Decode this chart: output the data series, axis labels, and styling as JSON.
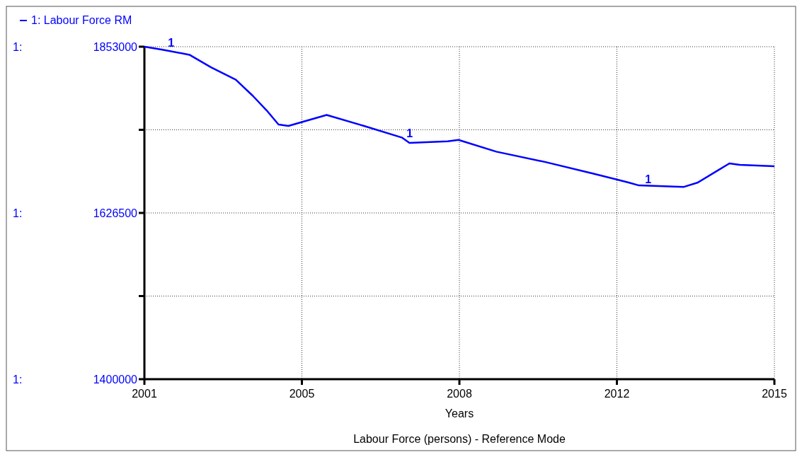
{
  "chart_data": {
    "type": "line",
    "title": "Labour Force (persons) - Reference Mode",
    "xlabel": "Years",
    "x": [
      2001,
      2001.4,
      2002.0,
      2002.48,
      2003.03,
      2003.41,
      2003.72,
      2003.98,
      2004.2,
      2005.05,
      2005.88,
      2006.73,
      2006.89,
      2007.74,
      2007.98,
      2008.82,
      2009.9,
      2010.98,
      2011.76,
      2011.99,
      2012.99,
      2013.3,
      2014.0,
      2014.23,
      2015
    ],
    "series": [
      {
        "name": "1: Labour Force RM",
        "color": "#0000ff",
        "values": [
          1853000,
          1849000,
          1842000,
          1825000,
          1808000,
          1786000,
          1766000,
          1747000,
          1745000,
          1760000,
          1745000,
          1729000,
          1722000,
          1724000,
          1726000,
          1710000,
          1696000,
          1680000,
          1668000,
          1664000,
          1662000,
          1668000,
          1694000,
          1692000,
          1690000
        ]
      }
    ],
    "xlim": [
      2001,
      2015
    ],
    "xticks": [
      2001,
      {
        "value": 2004.5,
        "label": "2005"
      },
      2008,
      {
        "value": 2011.5,
        "label": "2012"
      },
      2015
    ],
    "ylim": [
      1400000,
      1853000
    ],
    "yticks": [
      1400000,
      {
        "value": 1513250,
        "label": null
      },
      1626500,
      {
        "value": 1739750,
        "label": null
      },
      1853000
    ],
    "annotations": [
      "1:",
      "1:",
      "1:",
      {
        "text": "1",
        "x": 2001.5,
        "y": 1850000
      },
      {
        "text": "1",
        "x": 2006.8,
        "y": 1726000
      },
      {
        "text": "1",
        "x": 2012.1,
        "y": 1664000
      }
    ],
    "grid": true,
    "legend": "top left",
    "marker": "none",
    "line_style": "solid"
  }
}
